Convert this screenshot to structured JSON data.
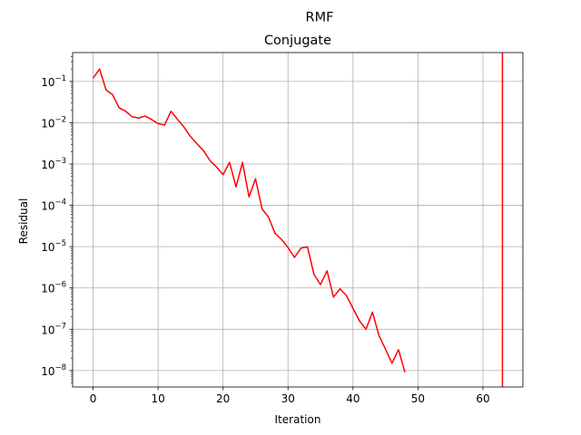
{
  "chart_data": {
    "type": "line",
    "suptitle": "RMF",
    "title": "Conjugate",
    "xlabel": "Iteration",
    "ylabel": "Residual",
    "xlim": [
      -3.15,
      66.15
    ],
    "ylim": [
      4e-09,
      0.5
    ],
    "yscale": "log",
    "grid": true,
    "xticks": [
      0,
      10,
      20,
      30,
      40,
      50,
      60
    ],
    "yticks": [
      {
        "value": 1e-08,
        "base": "10",
        "exp": "−8"
      },
      {
        "value": 1e-07,
        "base": "10",
        "exp": "−7"
      },
      {
        "value": 1e-06,
        "base": "10",
        "exp": "−6"
      },
      {
        "value": 1e-05,
        "base": "10",
        "exp": "−5"
      },
      {
        "value": 0.0001,
        "base": "10",
        "exp": "−4"
      },
      {
        "value": 0.001,
        "base": "10",
        "exp": "−3"
      },
      {
        "value": 0.01,
        "base": "10",
        "exp": "−2"
      },
      {
        "value": 0.1,
        "base": "10",
        "exp": "−1"
      }
    ],
    "series": [
      {
        "color": "#ff0000",
        "x": [
          0,
          1,
          2,
          3,
          4,
          5,
          6,
          7,
          8,
          9,
          10,
          11,
          12,
          13,
          14,
          15,
          16,
          17,
          18,
          19,
          20,
          21,
          22,
          23,
          24,
          25,
          26,
          27,
          28,
          29,
          30,
          31,
          32,
          33,
          34,
          35,
          36,
          37,
          38,
          39,
          40,
          41,
          42,
          43,
          44,
          45,
          46,
          47,
          48
        ],
        "y": [
          0.12,
          0.2,
          0.062,
          0.048,
          0.023,
          0.019,
          0.014,
          0.013,
          0.0145,
          0.012,
          0.0095,
          0.0088,
          0.019,
          0.012,
          0.0078,
          0.0046,
          0.0031,
          0.0021,
          0.0012,
          0.00085,
          0.00055,
          0.0011,
          0.00028,
          0.0011,
          0.00016,
          0.00044,
          8.2e-05,
          5.2e-05,
          2.1e-05,
          1.5e-05,
          9.5e-06,
          5.5e-06,
          9.2e-06,
          9.8e-06,
          2.1e-06,
          1.2e-06,
          2.6e-06,
          6e-07,
          9.5e-07,
          6.5e-07,
          3.2e-07,
          1.6e-07,
          1e-07,
          2.6e-07,
          7e-08,
          3.3e-08,
          1.5e-08,
          3.2e-08,
          9e-09
        ]
      }
    ],
    "vlines": [
      {
        "x": 63,
        "color": "#ff0000"
      }
    ]
  }
}
